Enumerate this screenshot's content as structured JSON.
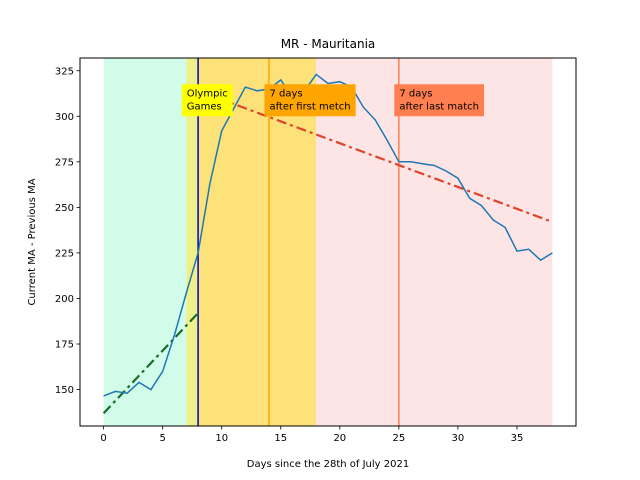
{
  "chart_data": {
    "type": "line",
    "title": "MR - Mauritania",
    "xlabel": "Days since the 28th of July 2021",
    "ylabel": "Current MA - Previous MA",
    "xlim": [
      -2,
      40
    ],
    "ylim": [
      130,
      332
    ],
    "x_ticks": [
      0,
      5,
      10,
      15,
      20,
      25,
      30,
      35
    ],
    "y_ticks": [
      150,
      175,
      200,
      225,
      250,
      275,
      300,
      325
    ],
    "grid": false,
    "series": [
      {
        "color": "#1f77b4",
        "style": "solid",
        "x": [
          0,
          1,
          2,
          3,
          4,
          5,
          6,
          7,
          8,
          9,
          10,
          11,
          12,
          13,
          14,
          15,
          16,
          17,
          18,
          19,
          20,
          21,
          22,
          23,
          24,
          25,
          26,
          27,
          28,
          29,
          30,
          31,
          32,
          33,
          34,
          35,
          36,
          37,
          38
        ],
        "y": [
          146.5,
          149,
          148,
          154,
          150,
          160,
          180,
          203,
          225,
          263,
          292,
          304,
          316,
          314,
          315,
          320,
          310,
          314,
          323,
          318,
          319,
          316,
          305,
          298,
          287,
          275,
          275,
          274,
          273,
          270,
          266,
          255,
          251,
          243,
          239,
          226,
          227,
          221,
          225
        ]
      }
    ],
    "trend_lines": [
      {
        "color": "#1a6b2a",
        "style": "dashdot",
        "x": [
          0,
          8
        ],
        "y": [
          137,
          192
        ]
      },
      {
        "color": "#e0432b",
        "style": "dashdot",
        "x": [
          8,
          38
        ],
        "y": [
          314,
          242
        ]
      }
    ],
    "regions": [
      {
        "x_start": 0,
        "x_end": 7,
        "color": "#d0fce9"
      },
      {
        "x_start": 7,
        "x_end": 8,
        "color": "#eef08a"
      },
      {
        "x_start": 8,
        "x_end": 18,
        "color": "#fde27a"
      },
      {
        "x_start": 18,
        "x_end": 38,
        "color": "#fde5e5"
      }
    ],
    "vertical_lines": [
      {
        "x": 8,
        "color": "#0000cc"
      },
      {
        "x": 14,
        "color": "#ffa500"
      },
      {
        "x": 25,
        "color": "#ff7f50"
      }
    ],
    "annotations": [
      {
        "lines": [
          "Olympic",
          "Games"
        ],
        "x": 7,
        "y": 311,
        "bg": "#ffff00"
      },
      {
        "lines": [
          "7 days",
          "after first metch"
        ],
        "x": 14,
        "y": 311,
        "bg": "#ffa500"
      },
      {
        "lines": [
          "7 days",
          "after last match"
        ],
        "x": 25,
        "y": 311,
        "bg": "#ff7f50"
      }
    ]
  }
}
